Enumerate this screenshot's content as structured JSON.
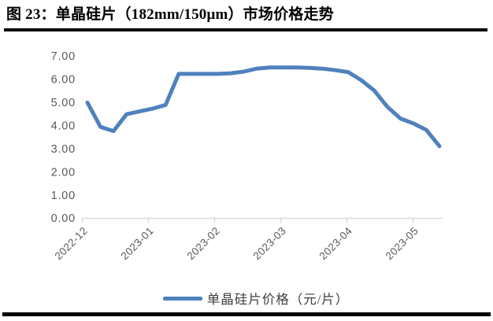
{
  "figure": {
    "title": "图 23：单晶硅片（182mm/150μm）市场价格走势"
  },
  "chart_data": {
    "type": "line",
    "title": "单晶硅片（182mm/150μm）市场价格走势",
    "xlabel": "",
    "ylabel": "",
    "ylim": [
      0,
      7
    ],
    "y_tick_labels": [
      "7.00",
      "6.00",
      "5.00",
      "4.00",
      "3.00",
      "2.00",
      "1.00",
      "0.00"
    ],
    "x_tick_labels": [
      "2022-12",
      "2023-01",
      "2023-02",
      "2023-03",
      "2023-04",
      "2023-05"
    ],
    "grid": false,
    "legend_position": "bottom",
    "series": [
      {
        "name": "单晶硅片价格（元/片）",
        "unit": "元/片",
        "x_start": "2022-12",
        "x_end": "2023-05",
        "frequency": "weekly",
        "values": [
          4.98,
          3.93,
          3.75,
          4.48,
          4.6,
          4.72,
          4.88,
          6.22,
          6.22,
          6.22,
          6.22,
          6.25,
          6.32,
          6.45,
          6.5,
          6.5,
          6.5,
          6.48,
          6.45,
          6.38,
          6.3,
          5.95,
          5.5,
          4.8,
          4.3,
          4.08,
          3.8,
          3.1
        ]
      }
    ],
    "colors": {
      "line": "#4F81BD",
      "axis": "#D9D9D9",
      "tick_label": "#595959",
      "title_text": "#000000"
    }
  }
}
